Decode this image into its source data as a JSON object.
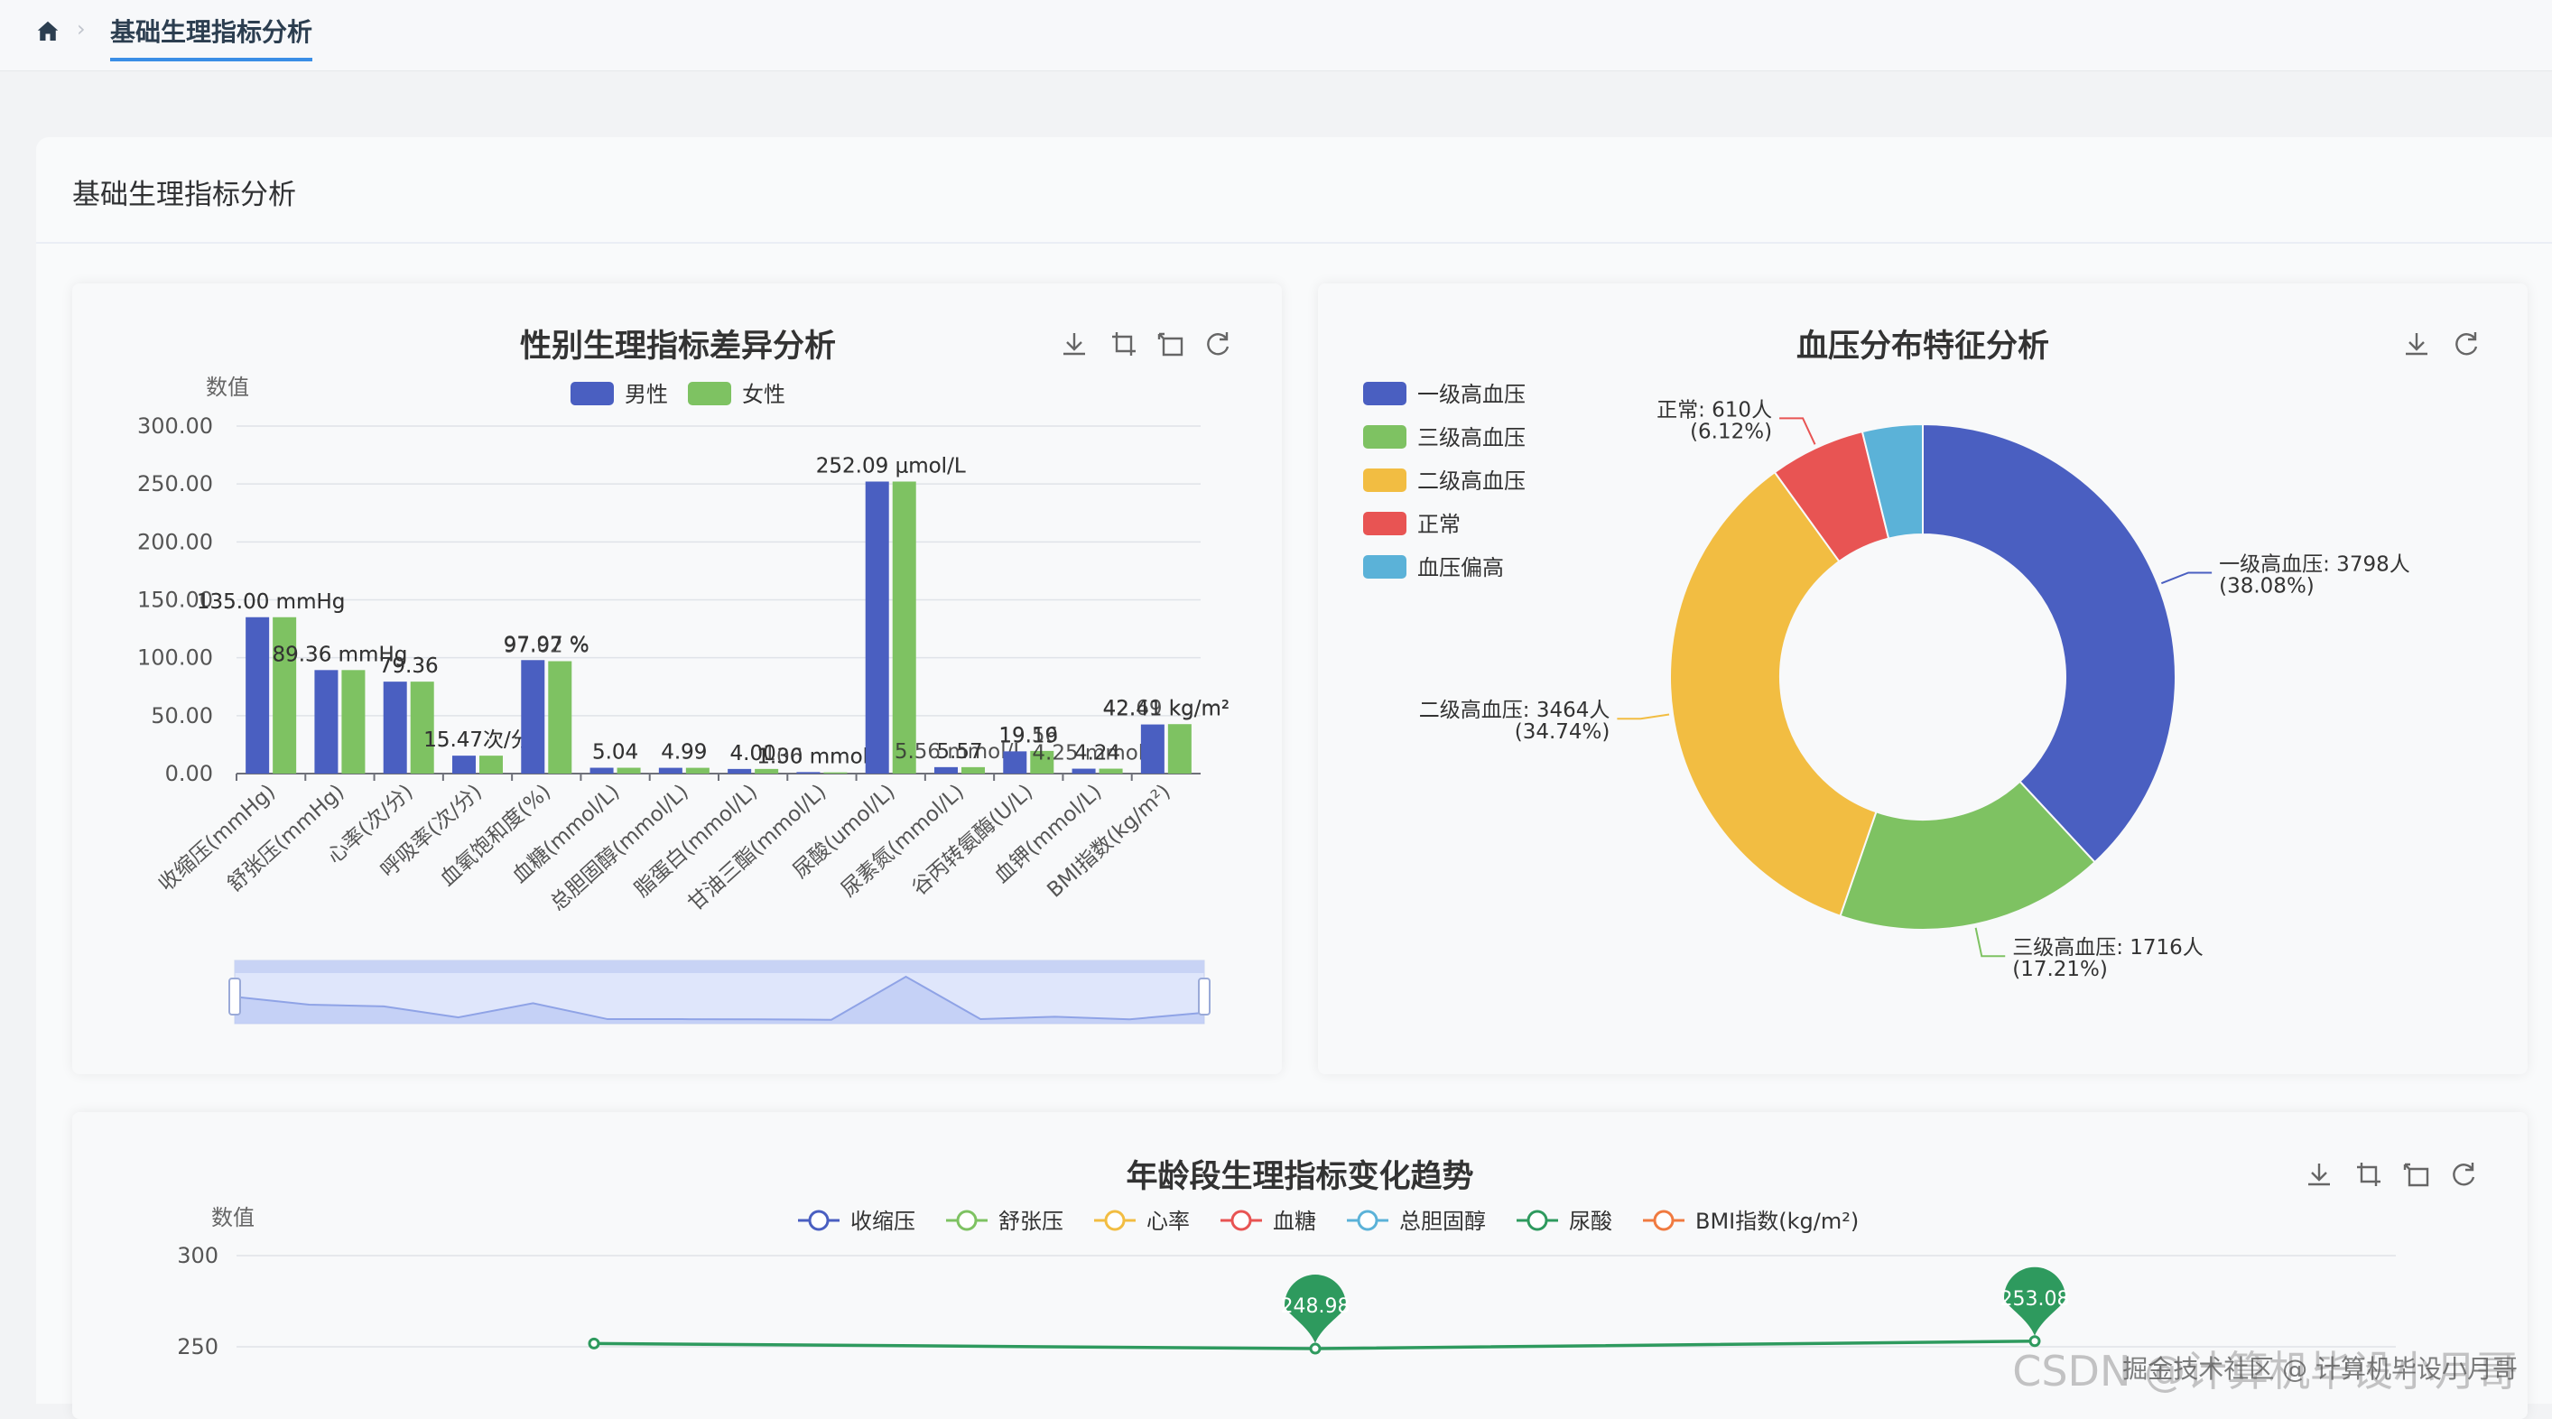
{
  "breadcrumb": {
    "home_icon": "home-icon",
    "tab_label": "基础生理指标分析"
  },
  "page": {
    "title": "基础生理指标分析"
  },
  "toolbox_icons": [
    "download-icon",
    "zoom-select-icon",
    "zoom-reset-icon",
    "restore-icon"
  ],
  "watermark": {
    "left": "CSDN @计算机毕设小月哥",
    "right": "掘金技术社区 @ 计算机毕设小月哥"
  },
  "colors": {
    "blue": "#4a5fc1",
    "green": "#7ec262",
    "yellow": "#f2bd42",
    "red": "#e85453",
    "cyan": "#5bb2d8",
    "darkgreen": "#2e9a5e",
    "orange": "#f07a40"
  },
  "chart_data": [
    {
      "type": "bar",
      "title": "性别生理指标差异分析",
      "ylabel": "数值",
      "ylim": [
        0,
        300
      ],
      "yticks": [
        "0.00",
        "50.00",
        "100.00",
        "150.00",
        "200.00",
        "250.00",
        "300.00"
      ],
      "categories": [
        "收缩压(mmHg)",
        "舒张压(mmHg)",
        "心率(次/分)",
        "呼吸率(次/分)",
        "血氧饱和度(%)",
        "血糖(mmol/L)",
        "总胆固醇(mmol/L)",
        "脂蛋白(mmol/L)",
        "甘油三酯(mmol/L)",
        "尿酸(umol/L)",
        "尿素氮(mmol/L)",
        "谷丙转氨酶(U/L)",
        "血钾(mmol/L)",
        "BMI指数(kg/m²)"
      ],
      "series": [
        {
          "name": "男性",
          "color": "#4a5fc1",
          "values": [
            135.0,
            89.36,
            79.36,
            15.47,
            97.97,
            5.04,
            4.99,
            4.0,
            1.3,
            252.09,
            5.57,
            19.19,
            4.24,
            42.41
          ],
          "labels": [
            "135.00 mmHg",
            "89.36 mmHg",
            "79.36",
            "15.47次/分",
            "97.97 %",
            "5.04",
            "4.99",
            "4.00",
            "1.30 mmol/L",
            "252.09 μmol/L",
            "5.57",
            "19.19",
            "4.24",
            "42.41 kg/m²"
          ]
        },
        {
          "name": "女性",
          "color": "#7ec262",
          "values": [
            135.0,
            89.36,
            79.36,
            15.47,
            97.02,
            5.04,
            4.99,
            4.01,
            1.06,
            252.09,
            5.56,
            19.56,
            4.25,
            42.69
          ],
          "labels": [
            "135.00 mmHg",
            "89.36 mmHg",
            "79.36",
            "15.47次/分",
            "97.02 %",
            "5.04",
            "4.99",
            "4.01",
            "1.06 mmol/L",
            "252.09 μmol/L",
            "5.56 mmol/L",
            "19.56",
            "4.25 mmol/L",
            "42.69 kg/m²"
          ]
        }
      ]
    },
    {
      "type": "pie",
      "title": "血压分布特征分析",
      "legend": [
        "一级高血压",
        "三级高血压",
        "二级高血压",
        "正常",
        "血压偏高"
      ],
      "slices": [
        {
          "name": "一级高血压",
          "value": 3798,
          "percent": 38.08,
          "color": "#4a5fc1",
          "label": "一级高血压: 3798人",
          "pct_label": "(38.08%)"
        },
        {
          "name": "三级高血压",
          "value": 1716,
          "percent": 17.21,
          "color": "#7ec262",
          "label": "三级高血压: 1716人",
          "pct_label": "(17.21%)"
        },
        {
          "name": "二级高血压",
          "value": 3464,
          "percent": 34.74,
          "color": "#f2bd42",
          "label": "二级高血压: 3464人",
          "pct_label": "(34.74%)"
        },
        {
          "name": "正常",
          "value": 610,
          "percent": 6.12,
          "color": "#e85453",
          "label": "正常: 610人",
          "pct_label": "(6.12%)"
        },
        {
          "name": "血压偏高",
          "value": 384,
          "percent": 3.85,
          "color": "#5bb2d8",
          "label": "",
          "pct_label": ""
        }
      ]
    },
    {
      "type": "line",
      "title": "年龄段生理指标变化趋势",
      "ylabel": "数值",
      "yticks": [
        "300",
        "250"
      ],
      "ylim": [
        250,
        300
      ],
      "legend": [
        {
          "name": "收缩压",
          "color": "#4a5fc1"
        },
        {
          "name": "舒张压",
          "color": "#7ec262"
        },
        {
          "name": "心率",
          "color": "#f2bd42"
        },
        {
          "name": "血糖",
          "color": "#e85453"
        },
        {
          "name": "总胆固醇",
          "color": "#5bb2d8"
        },
        {
          "name": "尿酸",
          "color": "#2e9a5e"
        },
        {
          "name": "BMI指数(kg/m²)",
          "color": "#f07a40"
        }
      ],
      "series": [
        {
          "name": "尿酸",
          "color": "#2e9a5e",
          "values": [
            251.8,
            248.98,
            253.08
          ]
        }
      ],
      "markpoints": [
        "248.98",
        "253.08"
      ]
    }
  ]
}
